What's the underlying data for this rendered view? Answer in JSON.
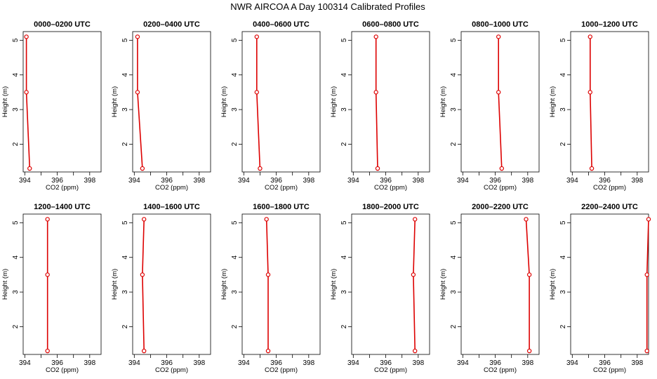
{
  "chart_data": {
    "type": "line",
    "title": "NWR AIRCOA A  Day 100314  Calibrated Profiles",
    "xlabel": "CO2 (ppm)",
    "ylabel": "Height (m)",
    "xlim": [
      393.9,
      398.7
    ],
    "ylim": [
      1.2,
      5.25
    ],
    "xticks": [
      394,
      396,
      398
    ],
    "xticks_minor": [
      395,
      397
    ],
    "yticks": [
      2,
      3,
      4,
      5
    ],
    "heights": [
      5.1,
      3.5,
      1.3
    ],
    "line_color": "#dd0000",
    "marker_color": "#dd0000",
    "panels": [
      {
        "title": "0000–0200 UTC",
        "values": [
          394.1,
          394.1,
          394.3
        ]
      },
      {
        "title": "0200–0400 UTC",
        "values": [
          394.2,
          394.2,
          394.5
        ]
      },
      {
        "title": "0400–0600 UTC",
        "values": [
          394.8,
          394.8,
          395.0
        ]
      },
      {
        "title": "0600–0800 UTC",
        "values": [
          395.4,
          395.4,
          395.5
        ]
      },
      {
        "title": "0800–1000 UTC",
        "values": [
          396.2,
          396.2,
          396.4
        ]
      },
      {
        "title": "1000–1200 UTC",
        "values": [
          395.1,
          395.1,
          395.2
        ]
      },
      {
        "title": "1200–1400 UTC",
        "values": [
          395.4,
          395.4,
          395.4
        ]
      },
      {
        "title": "1400–1600 UTC",
        "values": [
          394.6,
          394.5,
          394.6
        ]
      },
      {
        "title": "1600–1800 UTC",
        "values": [
          395.4,
          395.5,
          395.5
        ]
      },
      {
        "title": "1800–2000 UTC",
        "values": [
          397.8,
          397.7,
          397.8
        ]
      },
      {
        "title": "2000–2200 UTC",
        "values": [
          397.9,
          398.1,
          398.1
        ]
      },
      {
        "title": "2200–2400 UTC",
        "values": [
          398.7,
          398.6,
          398.6
        ]
      }
    ]
  }
}
